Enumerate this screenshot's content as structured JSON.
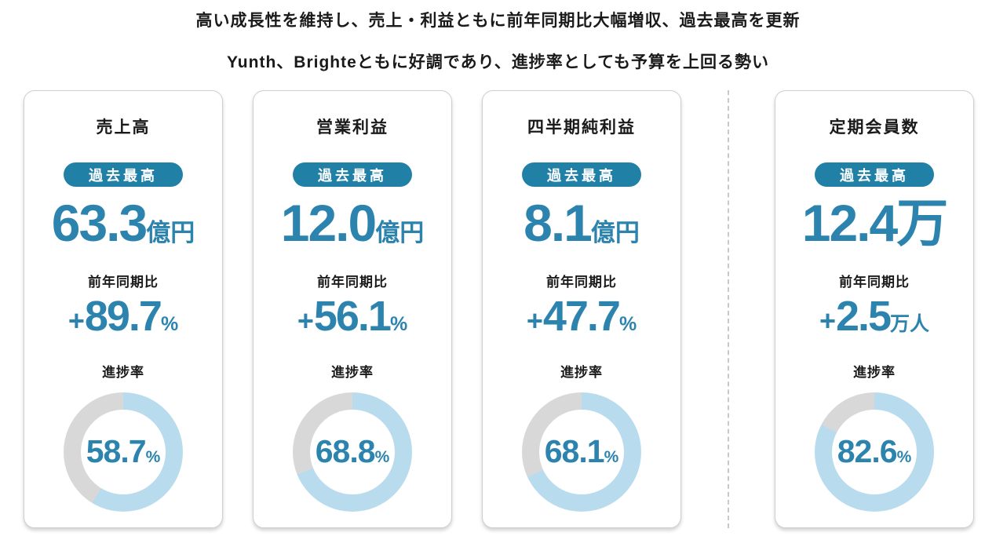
{
  "header": {
    "line1": "高い成長性を維持し、売上・利益ともに前年同期比大幅増収、過去最高を更新",
    "line2": "Yunth、Brighteともに好調であり、進捗率としても予算を上回る勢い"
  },
  "colors": {
    "accent_teal": "#2C84AE",
    "badge_teal": "#2180A6",
    "donut_fill_blue": "#B9DBEE",
    "donut_rest_gray": "#D8D8D8",
    "text_dark": "#1A1A1A"
  },
  "cards": [
    {
      "title": "売上高",
      "badge": "過去最高",
      "value": "63.3",
      "value_suffix": "億円",
      "yoy_label": "前年同期比",
      "yoy_sign": "+",
      "yoy_value": "89.7",
      "yoy_suffix": "%",
      "progress_label": "進捗率",
      "progress_value": "58.7",
      "progress_unit": "%",
      "progress_percent": 58.7
    },
    {
      "title": "営業利益",
      "badge": "過去最高",
      "value": "12.0",
      "value_suffix": "億円",
      "yoy_label": "前年同期比",
      "yoy_sign": "+",
      "yoy_value": "56.1",
      "yoy_suffix": "%",
      "progress_label": "進捗率",
      "progress_value": "68.8",
      "progress_unit": "%",
      "progress_percent": 68.8
    },
    {
      "title": "四半期純利益",
      "badge": "過去最高",
      "value": "8.1",
      "value_suffix": "億円",
      "yoy_label": "前年同期比",
      "yoy_sign": "+",
      "yoy_value": "47.7",
      "yoy_suffix": "%",
      "progress_label": "進捗率",
      "progress_value": "68.1",
      "progress_unit": "%",
      "progress_percent": 68.1
    },
    {
      "title": "定期会員数",
      "badge": "過去最高",
      "value": "12.4万",
      "value_suffix": "",
      "yoy_label": "前年同期比",
      "yoy_sign": "+",
      "yoy_value": "2.5",
      "yoy_suffix": "万人",
      "progress_label": "進捗率",
      "progress_value": "82.6",
      "progress_unit": "%",
      "progress_percent": 82.6
    }
  ],
  "chart_data": [
    {
      "type": "pie",
      "subtype": "donut",
      "title": "売上高 進捗率",
      "labels": [
        "進捗",
        "残り"
      ],
      "values": [
        58.7,
        41.3
      ],
      "unit": "%",
      "start_angle": "top",
      "direction": "clockwise"
    },
    {
      "type": "pie",
      "subtype": "donut",
      "title": "営業利益 進捗率",
      "labels": [
        "進捗",
        "残り"
      ],
      "values": [
        68.8,
        31.2
      ],
      "unit": "%",
      "start_angle": "top",
      "direction": "clockwise"
    },
    {
      "type": "pie",
      "subtype": "donut",
      "title": "四半期純利益 進捗率",
      "labels": [
        "進捗",
        "残り"
      ],
      "values": [
        68.1,
        31.9
      ],
      "unit": "%",
      "start_angle": "top",
      "direction": "clockwise"
    },
    {
      "type": "pie",
      "subtype": "donut",
      "title": "定期会員数 進捗率",
      "labels": [
        "進捗",
        "残り"
      ],
      "values": [
        82.6,
        17.4
      ],
      "unit": "%",
      "start_angle": "top",
      "direction": "clockwise"
    }
  ]
}
